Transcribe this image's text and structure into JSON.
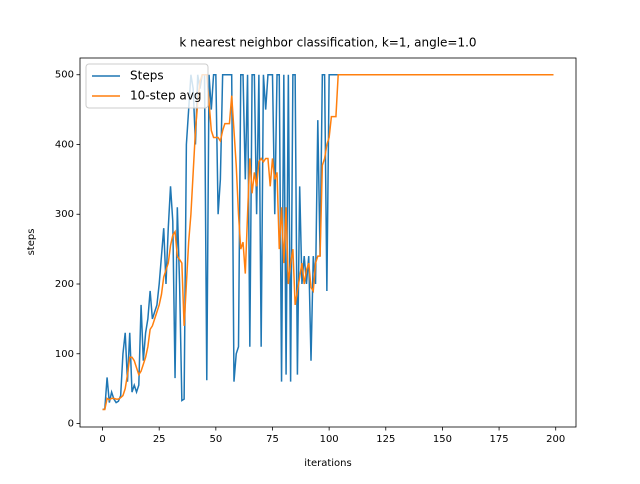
{
  "chart_data": {
    "type": "line",
    "title": "k nearest neighbor classification, k=1, angle=1.0",
    "xlabel": "iterations",
    "ylabel": "steps",
    "xlim": [
      -9.95,
      208.95
    ],
    "ylim": [
      -5,
      524
    ],
    "xticks": [
      0,
      25,
      50,
      75,
      100,
      125,
      150,
      175,
      200
    ],
    "yticks": [
      0,
      100,
      200,
      300,
      400,
      500
    ],
    "legend": "upper left",
    "x": [
      0,
      1,
      2,
      3,
      4,
      5,
      6,
      7,
      8,
      9,
      10,
      11,
      12,
      13,
      14,
      15,
      16,
      17,
      18,
      19,
      20,
      21,
      22,
      23,
      24,
      25,
      26,
      27,
      28,
      29,
      30,
      31,
      32,
      33,
      34,
      35,
      36,
      37,
      38,
      39,
      40,
      41,
      42,
      43,
      44,
      45,
      46,
      47,
      48,
      49,
      50,
      51,
      52,
      53,
      54,
      55,
      56,
      57,
      58,
      59,
      60,
      61,
      62,
      63,
      64,
      65,
      66,
      67,
      68,
      69,
      70,
      71,
      72,
      73,
      74,
      75,
      76,
      77,
      78,
      79,
      80,
      81,
      82,
      83,
      84,
      85,
      86,
      87,
      88,
      89,
      90,
      91,
      92,
      93,
      94,
      95,
      96,
      97,
      98,
      99,
      100,
      101,
      102,
      103,
      104,
      105,
      106,
      107,
      108,
      109,
      110,
      111,
      112,
      113,
      114,
      115,
      116,
      117,
      118,
      119,
      120,
      121,
      122,
      123,
      124,
      125,
      126,
      127,
      128,
      129,
      130,
      131,
      132,
      133,
      134,
      135,
      136,
      137,
      138,
      139,
      140,
      141,
      142,
      143,
      144,
      145,
      146,
      147,
      148,
      149,
      150,
      151,
      152,
      153,
      154,
      155,
      156,
      157,
      158,
      159,
      160,
      161,
      162,
      163,
      164,
      165,
      166,
      167,
      168,
      169,
      170,
      171,
      172,
      173,
      174,
      175,
      176,
      177,
      178,
      179,
      180,
      181,
      182,
      183,
      184,
      185,
      186,
      187,
      188,
      189,
      190,
      191,
      192,
      193,
      194,
      195,
      196,
      197,
      198,
      199
    ],
    "series": [
      {
        "name": "Steps",
        "color": "#1f77b4",
        "values": [
          20,
          21,
          66,
          30,
          45,
          35,
          30,
          32,
          40,
          100,
          130,
          60,
          130,
          45,
          55,
          45,
          55,
          170,
          90,
          130,
          150,
          190,
          150,
          160,
          170,
          200,
          240,
          280,
          200,
          280,
          340,
          290,
          65,
          310,
          200,
          33,
          35,
          400,
          450,
          500,
          480,
          400,
          500,
          480,
          500,
          500,
          62,
          500,
          450,
          500,
          500,
          300,
          350,
          500,
          500,
          500,
          500,
          500,
          60,
          100,
          110,
          500,
          500,
          350,
          500,
          110,
          500,
          500,
          300,
          500,
          110,
          500,
          450,
          500,
          500,
          500,
          300,
          500,
          500,
          60,
          500,
          70,
          500,
          60,
          500,
          500,
          70,
          340,
          200,
          240,
          200,
          240,
          90,
          240,
          200,
          435,
          240,
          500,
          500,
          190,
          500,
          500,
          500,
          500,
          500,
          500,
          500,
          500,
          500,
          500,
          500,
          500,
          500,
          500,
          500,
          500,
          500,
          500,
          500,
          500,
          500,
          500,
          500,
          500,
          500,
          500,
          500,
          500,
          500,
          500,
          500,
          500,
          500,
          500,
          500,
          500,
          500,
          500,
          500,
          500,
          500,
          500,
          500,
          500,
          500,
          500,
          500,
          500,
          500,
          500,
          500,
          500,
          500,
          500,
          500,
          500,
          500,
          500,
          500,
          500,
          500,
          500,
          500,
          500,
          500,
          500,
          500,
          500,
          500,
          500,
          500,
          500,
          500,
          500,
          500,
          500,
          500,
          500,
          500,
          500,
          500,
          500,
          500,
          500,
          500,
          500,
          500,
          500,
          500,
          500,
          500,
          500,
          500,
          500,
          500,
          500,
          500,
          500,
          500,
          500
        ]
      },
      {
        "name": "10-step avg",
        "color": "#ff7f0e",
        "values": [
          20,
          20,
          36,
          34,
          36,
          36,
          35,
          35,
          37,
          40,
          50,
          70,
          95,
          95,
          90,
          80,
          70,
          75,
          85,
          95,
          110,
          135,
          140,
          150,
          160,
          170,
          185,
          210,
          220,
          230,
          255,
          270,
          275,
          240,
          235,
          230,
          140,
          200,
          260,
          300,
          360,
          420,
          460,
          490,
          500,
          500,
          500,
          460,
          420,
          410,
          410,
          410,
          405,
          420,
          430,
          430,
          430,
          470,
          420,
          370,
          300,
          250,
          260,
          215,
          300,
          380,
          330,
          360,
          340,
          375,
          380,
          375,
          380,
          380,
          340,
          380,
          350,
          360,
          250,
          310,
          230,
          310,
          200,
          230,
          250,
          170,
          190,
          210,
          230,
          200,
          220,
          230,
          195,
          190,
          230,
          240,
          240,
          370,
          380,
          400,
          410,
          440,
          440,
          440,
          500,
          500,
          500,
          500,
          500,
          500,
          500,
          500,
          500,
          500,
          500,
          500,
          500,
          500,
          500,
          500,
          500,
          500,
          500,
          500,
          500,
          500,
          500,
          500,
          500,
          500,
          500,
          500,
          500,
          500,
          500,
          500,
          500,
          500,
          500,
          500,
          500,
          500,
          500,
          500,
          500,
          500,
          500,
          500,
          500,
          500,
          500,
          500,
          500,
          500,
          500,
          500,
          500,
          500,
          500,
          500,
          500,
          500,
          500,
          500,
          500,
          500,
          500,
          500,
          500,
          500,
          500,
          500,
          500,
          500,
          500,
          500,
          500,
          500,
          500,
          500,
          500,
          500,
          500,
          500,
          500,
          500,
          500,
          500,
          500,
          500,
          500,
          500,
          500,
          500,
          500,
          500,
          500,
          500,
          500,
          500
        ]
      }
    ]
  }
}
